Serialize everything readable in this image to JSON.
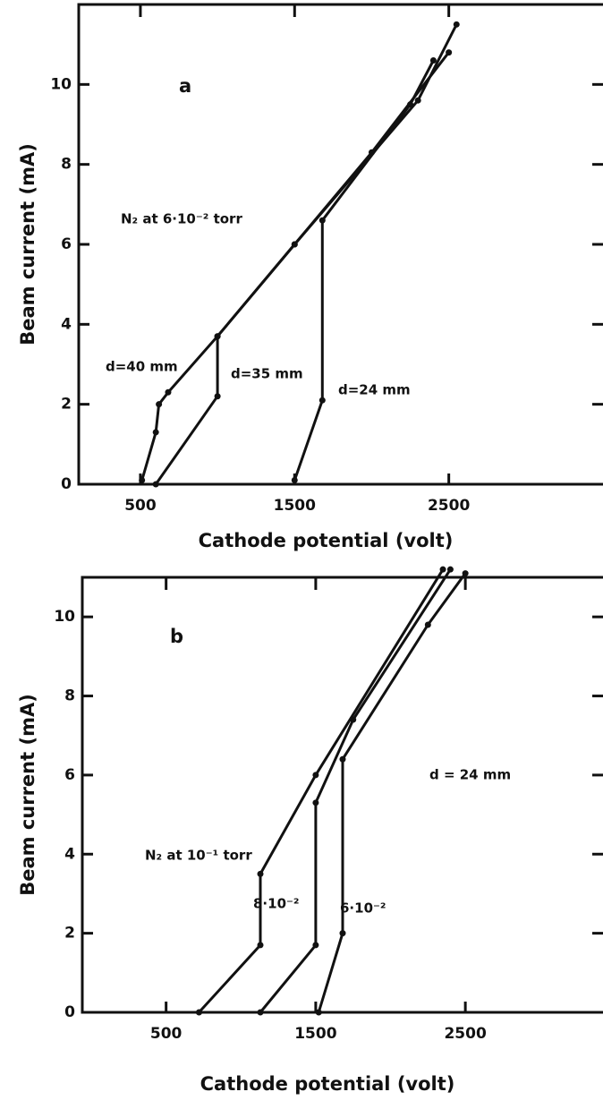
{
  "chart_data": [
    {
      "type": "line",
      "title": "a",
      "subtitle": "N₂ at 6·10⁻² torr",
      "xlabel": "Cathode potential  (volt)",
      "ylabel": "Beam current (mA)",
      "xlim": [
        100,
        3500
      ],
      "ylim": [
        0,
        12
      ],
      "xticks": [
        500,
        1500,
        2500
      ],
      "yticks": [
        0,
        2,
        4,
        6,
        8,
        10
      ],
      "series": [
        {
          "name": "d=40 mm",
          "color": "#111111",
          "x": [
            510,
            600,
            620,
            680,
            1000,
            1500,
            2000,
            2500
          ],
          "values": [
            0.1,
            1.3,
            2.0,
            2.3,
            3.7,
            6.0,
            8.3,
            10.8
          ]
        },
        {
          "name": "d=35 mm",
          "color": "#111111",
          "x": [
            600,
            1000,
            1000,
            1500,
            2300,
            2550
          ],
          "values": [
            0,
            2.2,
            3.7,
            6.0,
            9.6,
            11.5
          ]
        },
        {
          "name": "d=24 mm",
          "color": "#111111",
          "x": [
            1500,
            1680,
            1680,
            2250,
            2400
          ],
          "values": [
            0.1,
            2.1,
            6.6,
            9.5,
            10.6
          ]
        }
      ]
    },
    {
      "type": "line",
      "title": "b",
      "subtitle": "d = 24 mm",
      "xlabel": "Cathode potential  (volt)",
      "ylabel": "Beam current (mA)",
      "xlim": [
        -60,
        3420
      ],
      "ylim": [
        0,
        11
      ],
      "xticks": [
        500,
        1500,
        2500
      ],
      "yticks": [
        0,
        2,
        4,
        6,
        8,
        10
      ],
      "series": [
        {
          "name": "N₂ at 10⁻¹ torr",
          "color": "#111111",
          "x": [
            720,
            1130,
            1130,
            1500,
            2350
          ],
          "values": [
            0,
            1.7,
            3.5,
            6.0,
            11.2
          ]
        },
        {
          "name": "8·10⁻²",
          "color": "#111111",
          "x": [
            1130,
            1500,
            1500,
            1750,
            2400
          ],
          "values": [
            0,
            1.7,
            5.3,
            7.4,
            11.2
          ]
        },
        {
          "name": "6·10⁻²",
          "color": "#111111",
          "x": [
            1520,
            1680,
            1680,
            2250,
            2500
          ],
          "values": [
            0,
            2.0,
            6.4,
            9.8,
            11.1
          ]
        }
      ]
    }
  ]
}
